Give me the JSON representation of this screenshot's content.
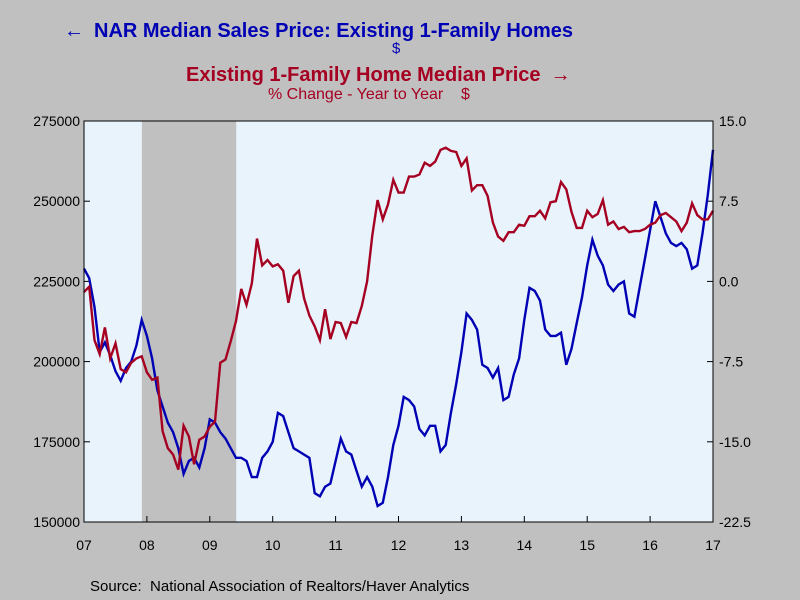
{
  "chart_data": {
    "type": "line",
    "title_left": "NAR Median Sales Price: Existing 1-Family Homes",
    "unit_left": "$",
    "title_right": "Existing 1-Family Home Median Price",
    "subtitle_right": "% Change - Year to Year    $",
    "source": "Source:  National Association of Realtors/Haver Analytics",
    "x_ticks": [
      "07",
      "08",
      "09",
      "10",
      "11",
      "12",
      "13",
      "14",
      "15",
      "16",
      "17"
    ],
    "x_range": [
      2007.0,
      2017.0
    ],
    "ylim_left": [
      150000,
      275000
    ],
    "y_ticks_left": [
      "150000",
      "175000",
      "200000",
      "225000",
      "250000",
      "275000"
    ],
    "ylim_right": [
      -22.5,
      15.0
    ],
    "y_ticks_right": [
      "-22.5",
      "-15.0",
      "-7.5",
      "0.0",
      "7.5",
      "15.0"
    ],
    "recession_shading": [
      2007.92,
      2009.42
    ],
    "grid": false,
    "colors": {
      "left_series": "#0000b4",
      "right_series": "#a50021",
      "recession": "#c0c0c0",
      "plot_bg": "#e9f3fc"
    },
    "series": [
      {
        "name": "NAR Median Sales Price: Existing 1-Family Homes",
        "axis": "left",
        "x": [
          2007.0,
          2007.083,
          2007.167,
          2007.25,
          2007.333,
          2007.417,
          2007.5,
          2007.583,
          2007.667,
          2007.75,
          2007.833,
          2007.917,
          2008.0,
          2008.083,
          2008.167,
          2008.25,
          2008.333,
          2008.417,
          2008.5,
          2008.583,
          2008.667,
          2008.75,
          2008.833,
          2008.917,
          2009.0,
          2009.083,
          2009.167,
          2009.25,
          2009.333,
          2009.417,
          2009.5,
          2009.583,
          2009.667,
          2009.75,
          2009.833,
          2009.917,
          2010.0,
          2010.083,
          2010.167,
          2010.25,
          2010.333,
          2010.417,
          2010.5,
          2010.583,
          2010.667,
          2010.75,
          2010.833,
          2010.917,
          2011.0,
          2011.083,
          2011.167,
          2011.25,
          2011.333,
          2011.417,
          2011.5,
          2011.583,
          2011.667,
          2011.75,
          2011.833,
          2011.917,
          2012.0,
          2012.083,
          2012.167,
          2012.25,
          2012.333,
          2012.417,
          2012.5,
          2012.583,
          2012.667,
          2012.75,
          2012.833,
          2012.917,
          2013.0,
          2013.083,
          2013.167,
          2013.25,
          2013.333,
          2013.417,
          2013.5,
          2013.583,
          2013.667,
          2013.75,
          2013.833,
          2013.917,
          2014.0,
          2014.083,
          2014.167,
          2014.25,
          2014.333,
          2014.417,
          2014.5,
          2014.583,
          2014.667,
          2014.75,
          2014.833,
          2014.917,
          2015.0,
          2015.083,
          2015.167,
          2015.25,
          2015.333,
          2015.417,
          2015.5,
          2015.583,
          2015.667,
          2015.75,
          2015.833,
          2015.917,
          2016.0,
          2016.083,
          2016.167,
          2016.25,
          2016.333,
          2016.417,
          2016.5,
          2016.583,
          2016.667,
          2016.75,
          2016.833,
          2016.917,
          2017.0
        ],
        "values": [
          229000,
          226000,
          217000,
          203000,
          206000,
          202000,
          197000,
          194000,
          198000,
          200000,
          205000,
          213000,
          208000,
          201000,
          191000,
          186000,
          181000,
          178000,
          173000,
          165000,
          169000,
          170000,
          167000,
          173000,
          182000,
          181000,
          178000,
          176000,
          173000,
          170000,
          170000,
          169000,
          164000,
          164000,
          170000,
          172000,
          175000,
          184000,
          183000,
          178000,
          173000,
          172000,
          171000,
          170000,
          159000,
          158000,
          161000,
          162000,
          169000,
          176000,
          172000,
          171000,
          166000,
          161000,
          164000,
          161000,
          155000,
          156000,
          164000,
          174000,
          180000,
          189000,
          188000,
          186000,
          179000,
          177000,
          180000,
          180000,
          172000,
          174000,
          184000,
          193000,
          203000,
          215000,
          213000,
          210000,
          199000,
          198000,
          195000,
          198000,
          188000,
          189000,
          196000,
          201000,
          213000,
          223000,
          222000,
          219000,
          210000,
          208000,
          208000,
          209000,
          199000,
          204000,
          212000,
          220000,
          230000,
          238000,
          233000,
          230000,
          224000,
          222000,
          224000,
          225000,
          215000,
          214000,
          223000,
          232000,
          241000,
          250000,
          245000,
          240000,
          237000,
          236000,
          237000,
          235000,
          229000,
          230000,
          240000,
          252000,
          266000
        ]
      },
      {
        "name": "Existing 1-Family Home Median Price",
        "axis": "right",
        "x": [
          2007.0,
          2007.083,
          2007.167,
          2007.25,
          2007.333,
          2007.417,
          2007.5,
          2007.583,
          2007.667,
          2007.75,
          2007.833,
          2007.917,
          2008.0,
          2008.083,
          2008.167,
          2008.25,
          2008.333,
          2008.417,
          2008.5,
          2008.583,
          2008.667,
          2008.75,
          2008.833,
          2008.917,
          2009.0,
          2009.083,
          2009.167,
          2009.25,
          2009.333,
          2009.417,
          2009.5,
          2009.583,
          2009.667,
          2009.75,
          2009.833,
          2009.917,
          2010.0,
          2010.083,
          2010.167,
          2010.25,
          2010.333,
          2010.417,
          2010.5,
          2010.583,
          2010.667,
          2010.75,
          2010.833,
          2010.917,
          2011.0,
          2011.083,
          2011.167,
          2011.25,
          2011.333,
          2011.417,
          2011.5,
          2011.583,
          2011.667,
          2011.75,
          2011.833,
          2011.917,
          2012.0,
          2012.083,
          2012.167,
          2012.25,
          2012.333,
          2012.417,
          2012.5,
          2012.583,
          2012.667,
          2012.75,
          2012.833,
          2012.917,
          2013.0,
          2013.083,
          2013.167,
          2013.25,
          2013.333,
          2013.417,
          2013.5,
          2013.583,
          2013.667,
          2013.75,
          2013.833,
          2013.917,
          2014.0,
          2014.083,
          2014.167,
          2014.25,
          2014.333,
          2014.417,
          2014.5,
          2014.583,
          2014.667,
          2014.75,
          2014.833,
          2014.917,
          2015.0,
          2015.083,
          2015.167,
          2015.25,
          2015.333,
          2015.417,
          2015.5,
          2015.583,
          2015.667,
          2015.75,
          2015.833,
          2015.917,
          2016.0,
          2016.083,
          2016.167,
          2016.25,
          2016.333,
          2016.417,
          2016.5,
          2016.583,
          2016.667,
          2016.75,
          2016.833,
          2016.917,
          2017.0
        ],
        "values": [
          -1.0,
          -0.5,
          -5.5,
          -6.8,
          -4.3,
          -7.2,
          -5.8,
          -8.2,
          -8.5,
          -7.6,
          -7.2,
          -7.0,
          -8.5,
          -9.2,
          -9.0,
          -14.0,
          -15.6,
          -16.2,
          -17.6,
          -13.5,
          -14.5,
          -17.1,
          -14.8,
          -14.5,
          -13.6,
          -13.1,
          -7.6,
          -7.3,
          -5.6,
          -3.7,
          -0.7,
          -2.2,
          -0.2,
          4.0,
          1.5,
          2.0,
          1.4,
          1.6,
          1.0,
          -2.0,
          0.5,
          1.0,
          -1.6,
          -3.2,
          -4.2,
          -5.5,
          -2.6,
          -5.4,
          -3.8,
          -3.9,
          -5.2,
          -3.8,
          -3.9,
          -2.3,
          0.0,
          4.3,
          7.6,
          5.8,
          7.2,
          9.5,
          8.3,
          8.3,
          9.8,
          9.8,
          10.0,
          11.1,
          10.8,
          11.2,
          12.3,
          12.5,
          12.2,
          12.1,
          10.8,
          11.5,
          8.5,
          9.0,
          9.0,
          8.0,
          5.5,
          4.2,
          3.8,
          4.6,
          4.6,
          5.3,
          5.2,
          6.1,
          6.1,
          6.6,
          5.9,
          7.4,
          7.5,
          9.3,
          8.6,
          6.5,
          5.0,
          5.0,
          6.6,
          6.0,
          6.3,
          7.6,
          5.3,
          5.6,
          4.9,
          5.1,
          4.6,
          4.7,
          4.7,
          4.9,
          5.3,
          5.5,
          6.2,
          6.4,
          6.0,
          5.6,
          4.7,
          5.5,
          7.3,
          6.2,
          5.8,
          5.8,
          6.6
        ]
      }
    ]
  }
}
